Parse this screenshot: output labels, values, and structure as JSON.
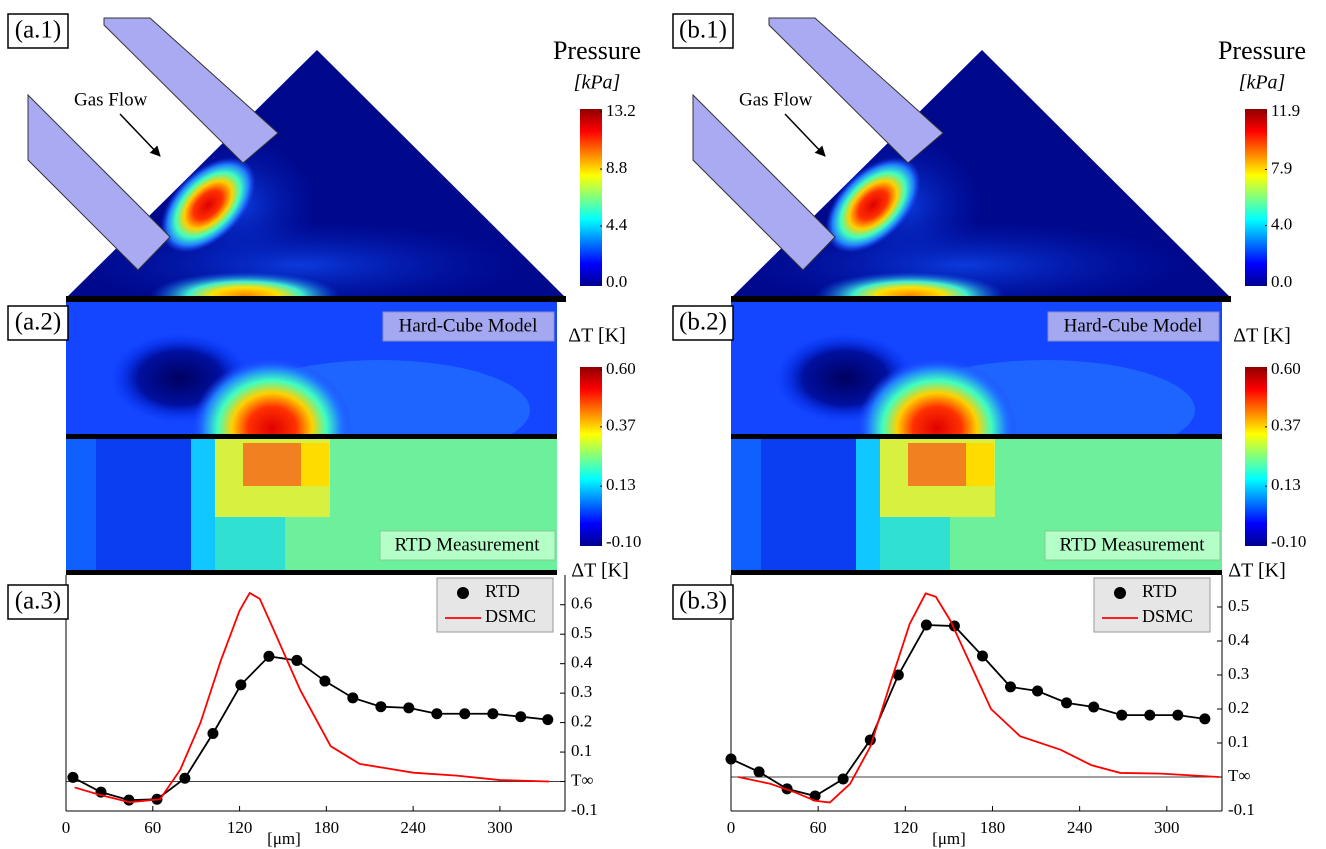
{
  "chart_data": [
    {
      "type": "heatmap",
      "panel_label": "(a.1)",
      "title": "Pressure",
      "unit": "[kPa]",
      "annotation": "Gas Flow",
      "colormap": "jet",
      "clim": [
        0,
        13.2
      ],
      "cticks": [
        13.2,
        8.8,
        4.4,
        {
          "value": 0,
          "label": "0.0"
        }
      ]
    },
    {
      "type": "heatmap",
      "panel_label": "(a.2)",
      "title": "ΔT [K]",
      "colormap": "jet",
      "annotations": [
        "Hard-Cube Model",
        "RTD Measurement"
      ],
      "clim": [
        -0.1,
        0.6
      ],
      "cticks": [
        {
          "value": 0.6,
          "label": "0.60"
        },
        0.37,
        0.13,
        {
          "value": -0.1,
          "label": "-0.10"
        }
      ]
    },
    {
      "type": "line",
      "panel_label": "(a.3)",
      "xlabel": "[μm]",
      "ylabel": "ΔT [K]",
      "legend": "upper right",
      "xlim": [
        0,
        345
      ],
      "xticks": [
        0,
        60,
        120,
        180,
        240,
        300
      ],
      "ylim": [
        -0.1,
        0.65
      ],
      "yticks": [
        -0.1,
        {
          "value": 0,
          "label": "T∞"
        },
        0.1,
        0.2,
        0.3,
        0.4,
        0.5,
        0.6
      ],
      "series": [
        {
          "name": "RTD",
          "color": "#000000",
          "marker": "circle",
          "x": [
            4.8,
            24.2,
            43.5,
            62.9,
            82.2,
            101.6,
            120.9,
            140.3,
            159.6,
            179,
            198.3,
            217.7,
            237,
            256.4,
            275.7,
            295.1,
            314.4,
            333.1
          ],
          "values": [
            0.014,
            -0.036,
            -0.063,
            -0.06,
            0.011,
            0.163,
            0.328,
            0.425,
            0.411,
            0.341,
            0.284,
            0.254,
            0.25,
            0.23,
            0.23,
            0.23,
            0.22,
            0.21
          ]
        },
        {
          "name": "DSMC",
          "color": "#ff0000",
          "x": [
            6,
            23,
            44,
            65,
            79,
            93,
            107,
            120,
            127,
            134,
            144,
            162,
            183,
            203,
            240,
            270,
            300,
            334
          ],
          "values": [
            -0.02,
            -0.045,
            -0.07,
            -0.06,
            0.04,
            0.2,
            0.41,
            0.58,
            0.64,
            0.62,
            0.51,
            0.31,
            0.12,
            0.06,
            0.03,
            0.02,
            0.005,
            0
          ]
        }
      ]
    },
    {
      "type": "heatmap",
      "panel_label": "(b.1)",
      "title": "Pressure",
      "unit": "[kPa]",
      "annotation": "Gas Flow",
      "colormap": "jet",
      "clim": [
        0,
        11.9
      ],
      "cticks": [
        11.9,
        7.9,
        {
          "value": 4,
          "label": "4.0"
        },
        {
          "value": 0,
          "label": "0.0"
        }
      ]
    },
    {
      "type": "heatmap",
      "panel_label": "(b.2)",
      "title": "ΔT [K]",
      "colormap": "jet",
      "annotations": [
        "Hard-Cube Model",
        "RTD Measurement"
      ],
      "clim": [
        -0.1,
        0.6
      ],
      "cticks": [
        {
          "value": 0.6,
          "label": "0.60"
        },
        0.37,
        0.13,
        {
          "value": -0.1,
          "label": "-0.10"
        }
      ]
    },
    {
      "type": "line",
      "panel_label": "(b.3)",
      "xlabel": "[μm]",
      "ylabel": "ΔT [K]",
      "legend": "upper right",
      "xlim": [
        0,
        338
      ],
      "xticks": [
        0,
        60,
        120,
        180,
        240,
        300
      ],
      "ylim": [
        -0.1,
        0.55
      ],
      "yticks": [
        -0.1,
        {
          "value": 0,
          "label": "T∞"
        },
        0.1,
        0.2,
        0.3,
        0.4,
        0.5
      ],
      "series": [
        {
          "name": "RTD",
          "color": "#000000",
          "marker": "circle",
          "x": [
            0,
            19.3,
            38.6,
            57.9,
            77.2,
            95.9,
            115.2,
            134.5,
            153.8,
            173.1,
            192.4,
            211,
            231,
            249.7,
            269,
            288.3,
            307.6,
            326.2
          ],
          "values": [
            0.053,
            0.015,
            -0.035,
            -0.056,
            -0.006,
            0.109,
            0.3,
            0.447,
            0.444,
            0.356,
            0.265,
            0.253,
            0.218,
            0.206,
            0.182,
            0.182,
            0.182,
            0.171
          ]
        },
        {
          "name": "DSMC",
          "color": "#ff0000",
          "x": [
            5,
            27,
            44,
            58,
            68,
            82,
            96,
            110,
            123,
            134,
            141,
            151,
            165,
            179,
            199,
            227,
            248,
            268,
            296,
            336
          ],
          "values": [
            0,
            -0.02,
            -0.045,
            -0.07,
            -0.075,
            -0.02,
            0.09,
            0.28,
            0.45,
            0.54,
            0.53,
            0.46,
            0.33,
            0.2,
            0.12,
            0.08,
            0.035,
            0.012,
            0.01,
            0
          ]
        }
      ]
    }
  ]
}
